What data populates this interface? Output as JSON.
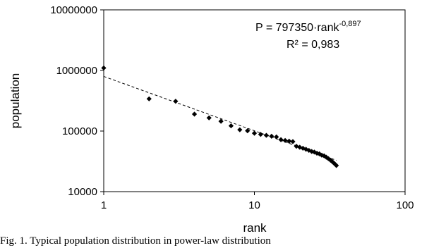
{
  "chart_data": {
    "type": "scatter",
    "title": "",
    "xlabel": "rank",
    "ylabel": "population",
    "x_scale": "log",
    "y_scale": "log",
    "xlim": [
      1,
      100
    ],
    "ylim": [
      10000,
      10000000
    ],
    "x_ticks": [
      1,
      10,
      100
    ],
    "y_ticks": [
      10000,
      100000,
      1000000,
      10000000
    ],
    "x_tick_labels": [
      "1",
      "10",
      "100"
    ],
    "y_tick_labels": [
      "10000",
      "100000",
      "1000000",
      "10000000"
    ],
    "grid": false,
    "legend": "none",
    "series": [
      {
        "marker": "diamond",
        "x": [
          1,
          2,
          3,
          4,
          5,
          6,
          7,
          8,
          9,
          10,
          11,
          12,
          13,
          14,
          15,
          16,
          17,
          18,
          19,
          20,
          21,
          22,
          23,
          24,
          25,
          26,
          27,
          28,
          29,
          30,
          31,
          32,
          33,
          34,
          35
        ],
        "y": [
          1100000,
          340000,
          310000,
          190000,
          165000,
          145000,
          122000,
          105000,
          101000,
          92000,
          88000,
          85000,
          82000,
          80000,
          72000,
          70000,
          68000,
          67000,
          56000,
          54000,
          52000,
          50000,
          48000,
          46000,
          45000,
          43000,
          42000,
          40000,
          39000,
          37000,
          35000,
          33000,
          31000,
          29000,
          27000
        ]
      }
    ],
    "trendline": {
      "style": "dashed",
      "coefficient": 797350,
      "exponent": -0.897,
      "x_range": [
        1,
        35
      ]
    },
    "annotations": {
      "equation_main": "P = 797350·rank",
      "equation_exponent": "-0,897",
      "r_squared": "R² = 0,983"
    }
  },
  "caption": "Fig. 1.  Typical population distribution in power-law distribution"
}
